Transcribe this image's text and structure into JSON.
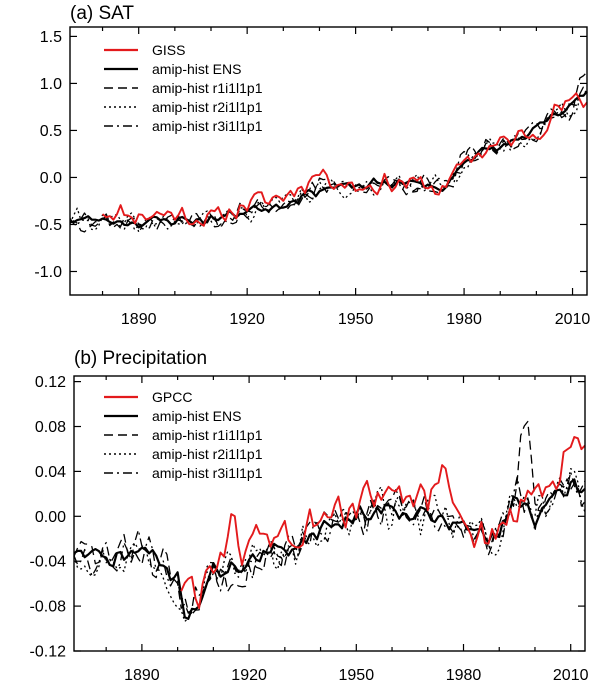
{
  "chart_data": [
    {
      "type": "line",
      "title": "(a) SAT",
      "xlim": [
        1871,
        2014
      ],
      "ylim": [
        -1.25,
        1.6
      ],
      "xticks": [
        1890,
        1920,
        1950,
        1980,
        2010
      ],
      "yticks": [
        -1.0,
        -0.5,
        0.0,
        0.5,
        1.0,
        1.5
      ],
      "ytick_labels": [
        "-1.0",
        "-0.5",
        "0.0",
        "0.5",
        "1.0",
        "1.5"
      ],
      "legend_position": "top-left",
      "series": [
        {
          "name": "GISS",
          "color": "#e31a1c",
          "style": "solid",
          "start_year": 1880,
          "anchors": [
            [
              1880,
              -0.35
            ],
            [
              1890,
              -0.4
            ],
            [
              1900,
              -0.38
            ],
            [
              1910,
              -0.45
            ],
            [
              1920,
              -0.28
            ],
            [
              1930,
              -0.2
            ],
            [
              1940,
              0.05
            ],
            [
              1950,
              -0.1
            ],
            [
              1960,
              -0.05
            ],
            [
              1970,
              -0.08
            ],
            [
              1975,
              -0.15
            ],
            [
              1980,
              0.2
            ],
            [
              1990,
              0.35
            ],
            [
              2000,
              0.5
            ],
            [
              2005,
              0.7
            ],
            [
              2010,
              0.8
            ],
            [
              2014,
              0.82
            ]
          ],
          "noise": 0.14,
          "seed": 11
        },
        {
          "name": "amip-hist ENS",
          "color": "#000000",
          "style": "solid",
          "start_year": 1871,
          "anchors": [
            [
              1871,
              -0.45
            ],
            [
              1880,
              -0.45
            ],
            [
              1890,
              -0.48
            ],
            [
              1900,
              -0.45
            ],
            [
              1910,
              -0.45
            ],
            [
              1920,
              -0.35
            ],
            [
              1930,
              -0.28
            ],
            [
              1940,
              -0.12
            ],
            [
              1950,
              -0.1
            ],
            [
              1960,
              -0.05
            ],
            [
              1970,
              -0.08
            ],
            [
              1975,
              -0.12
            ],
            [
              1980,
              0.2
            ],
            [
              1990,
              0.32
            ],
            [
              2000,
              0.5
            ],
            [
              2005,
              0.65
            ],
            [
              2010,
              0.75
            ],
            [
              2014,
              0.95
            ]
          ],
          "noise": 0.07,
          "seed": 23
        },
        {
          "name": "amip-hist r1i1l1p1",
          "color": "#000000",
          "style": "dashed",
          "start_year": 1871,
          "anchors": [
            [
              1871,
              -0.45
            ],
            [
              1880,
              -0.45
            ],
            [
              1890,
              -0.48
            ],
            [
              1900,
              -0.45
            ],
            [
              1910,
              -0.45
            ],
            [
              1920,
              -0.35
            ],
            [
              1930,
              -0.28
            ],
            [
              1940,
              -0.12
            ],
            [
              1950,
              -0.1
            ],
            [
              1960,
              -0.05
            ],
            [
              1970,
              -0.08
            ],
            [
              1975,
              -0.12
            ],
            [
              1980,
              0.2
            ],
            [
              1990,
              0.32
            ],
            [
              2000,
              0.5
            ],
            [
              2005,
              0.65
            ],
            [
              2010,
              0.75
            ],
            [
              2014,
              1.25
            ]
          ],
          "noise": 0.14,
          "seed": 37
        },
        {
          "name": "amip-hist r2i1l1p1",
          "color": "#000000",
          "style": "dotted",
          "start_year": 1871,
          "anchors": [
            [
              1871,
              -0.45
            ],
            [
              1880,
              -0.45
            ],
            [
              1890,
              -0.52
            ],
            [
              1900,
              -0.48
            ],
            [
              1910,
              -0.45
            ],
            [
              1920,
              -0.35
            ],
            [
              1930,
              -0.28
            ],
            [
              1940,
              -0.12
            ],
            [
              1950,
              -0.1
            ],
            [
              1960,
              -0.05
            ],
            [
              1970,
              -0.08
            ],
            [
              1975,
              -0.12
            ],
            [
              1980,
              0.2
            ],
            [
              1990,
              0.32
            ],
            [
              2000,
              0.5
            ],
            [
              2005,
              0.65
            ],
            [
              2010,
              0.75
            ],
            [
              2014,
              0.95
            ]
          ],
          "noise": 0.14,
          "seed": 41
        },
        {
          "name": "amip-hist r3i1l1p1",
          "color": "#000000",
          "style": "dashdot",
          "start_year": 1871,
          "anchors": [
            [
              1871,
              -0.4
            ],
            [
              1880,
              -0.45
            ],
            [
              1890,
              -0.48
            ],
            [
              1900,
              -0.45
            ],
            [
              1910,
              -0.45
            ],
            [
              1920,
              -0.35
            ],
            [
              1930,
              -0.28
            ],
            [
              1940,
              -0.12
            ],
            [
              1950,
              -0.1
            ],
            [
              1960,
              -0.05
            ],
            [
              1970,
              -0.08
            ],
            [
              1975,
              -0.12
            ],
            [
              1980,
              0.2
            ],
            [
              1990,
              0.32
            ],
            [
              2000,
              0.5
            ],
            [
              2005,
              0.65
            ],
            [
              2010,
              0.75
            ],
            [
              2014,
              0.95
            ]
          ],
          "noise": 0.13,
          "seed": 53
        }
      ]
    },
    {
      "type": "line",
      "title": "(b) Precipitation",
      "xlim": [
        1871,
        2014
      ],
      "ylim": [
        -0.12,
        0.125
      ],
      "xticks": [
        1890,
        1920,
        1950,
        1980,
        2010
      ],
      "yticks": [
        -0.12,
        -0.08,
        -0.04,
        0.0,
        0.04,
        0.08,
        0.12
      ],
      "ytick_labels": [
        "-0.12",
        "-0.08",
        "-0.04",
        "0.00",
        "0.04",
        "0.08",
        "0.12"
      ],
      "legend_position": "top-left",
      "series": [
        {
          "name": "GPCC",
          "color": "#e31a1c",
          "style": "solid",
          "start_year": 1901,
          "anchors": [
            [
              1901,
              -0.06
            ],
            [
              1905,
              -0.07
            ],
            [
              1910,
              -0.04
            ],
            [
              1915,
              -0.02
            ],
            [
              1920,
              -0.03
            ],
            [
              1925,
              -0.01
            ],
            [
              1930,
              -0.02
            ],
            [
              1940,
              -0.01
            ],
            [
              1950,
              0.01
            ],
            [
              1955,
              0.02
            ],
            [
              1960,
              0.01
            ],
            [
              1970,
              0.02
            ],
            [
              1975,
              0.03
            ],
            [
              1980,
              0.0
            ],
            [
              1985,
              -0.02
            ],
            [
              1990,
              -0.01
            ],
            [
              1995,
              0.0
            ],
            [
              2000,
              0.02
            ],
            [
              2005,
              0.03
            ],
            [
              2010,
              0.05
            ],
            [
              2014,
              0.06
            ]
          ],
          "noise": 0.025,
          "seed": 61
        },
        {
          "name": "amip-hist ENS",
          "color": "#000000",
          "style": "solid",
          "start_year": 1871,
          "anchors": [
            [
              1871,
              -0.03
            ],
            [
              1880,
              -0.04
            ],
            [
              1890,
              -0.03
            ],
            [
              1895,
              -0.04
            ],
            [
              1900,
              -0.06
            ],
            [
              1903,
              -0.09
            ],
            [
              1910,
              -0.05
            ],
            [
              1920,
              -0.04
            ],
            [
              1930,
              -0.03
            ],
            [
              1940,
              -0.01
            ],
            [
              1950,
              0.0
            ],
            [
              1960,
              0.01
            ],
            [
              1970,
              0.0
            ],
            [
              1980,
              -0.01
            ],
            [
              1990,
              -0.02
            ],
            [
              1995,
              0.02
            ],
            [
              2000,
              0.0
            ],
            [
              2005,
              0.01
            ],
            [
              2010,
              0.03
            ],
            [
              2014,
              0.02
            ]
          ],
          "noise": 0.011,
          "seed": 71
        },
        {
          "name": "amip-hist r1i1l1p1",
          "color": "#000000",
          "style": "dashed",
          "start_year": 1871,
          "anchors": [
            [
              1871,
              -0.03
            ],
            [
              1880,
              -0.04
            ],
            [
              1890,
              -0.03
            ],
            [
              1895,
              -0.04
            ],
            [
              1900,
              -0.06
            ],
            [
              1903,
              -0.09
            ],
            [
              1910,
              -0.05
            ],
            [
              1920,
              -0.04
            ],
            [
              1930,
              -0.03
            ],
            [
              1940,
              -0.01
            ],
            [
              1950,
              0.0
            ],
            [
              1960,
              0.01
            ],
            [
              1970,
              0.0
            ],
            [
              1980,
              -0.01
            ],
            [
              1990,
              -0.02
            ],
            [
              1995,
              0.03
            ],
            [
              1998,
              0.1
            ],
            [
              2000,
              0.0
            ],
            [
              2005,
              0.01
            ],
            [
              2010,
              0.03
            ],
            [
              2014,
              0.02
            ]
          ],
          "noise": 0.022,
          "seed": 83
        },
        {
          "name": "amip-hist r2i1l1p1",
          "color": "#000000",
          "style": "dotted",
          "start_year": 1871,
          "anchors": [
            [
              1871,
              -0.03
            ],
            [
              1880,
              -0.04
            ],
            [
              1890,
              -0.03
            ],
            [
              1895,
              -0.04
            ],
            [
              1900,
              -0.06
            ],
            [
              1903,
              -0.09
            ],
            [
              1910,
              -0.05
            ],
            [
              1920,
              -0.04
            ],
            [
              1930,
              -0.03
            ],
            [
              1940,
              -0.01
            ],
            [
              1950,
              0.0
            ],
            [
              1960,
              0.01
            ],
            [
              1970,
              0.0
            ],
            [
              1980,
              -0.01
            ],
            [
              1990,
              -0.02
            ],
            [
              1995,
              0.02
            ],
            [
              2000,
              0.0
            ],
            [
              2005,
              0.01
            ],
            [
              2010,
              0.03
            ],
            [
              2014,
              0.02
            ]
          ],
          "noise": 0.022,
          "seed": 97
        },
        {
          "name": "amip-hist r3i1l1p1",
          "color": "#000000",
          "style": "dashdot",
          "start_year": 1871,
          "anchors": [
            [
              1871,
              -0.03
            ],
            [
              1880,
              -0.04
            ],
            [
              1890,
              -0.03
            ],
            [
              1895,
              -0.04
            ],
            [
              1900,
              -0.06
            ],
            [
              1903,
              -0.09
            ],
            [
              1910,
              -0.05
            ],
            [
              1920,
              -0.04
            ],
            [
              1930,
              -0.03
            ],
            [
              1940,
              -0.01
            ],
            [
              1950,
              0.0
            ],
            [
              1960,
              0.01
            ],
            [
              1970,
              0.0
            ],
            [
              1980,
              -0.01
            ],
            [
              1990,
              -0.02
            ],
            [
              1995,
              0.02
            ],
            [
              2000,
              0.0
            ],
            [
              2005,
              0.01
            ],
            [
              2010,
              0.03
            ],
            [
              2014,
              0.02
            ]
          ],
          "noise": 0.021,
          "seed": 109
        }
      ]
    }
  ]
}
